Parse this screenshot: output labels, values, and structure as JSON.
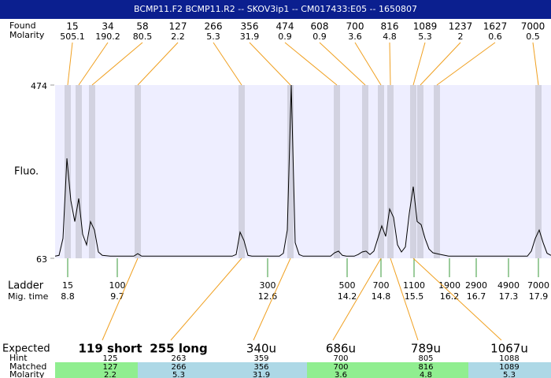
{
  "header": {
    "title": "BCMP11.F2  BCMP11.R2 -- SKOV3ip1 -- CM017433:E05 -- 1650807"
  },
  "row_labels": {
    "size": "Found",
    "molarity": "Molarity",
    "fluo": "Fluo.",
    "ladder": "Ladder",
    "mig_time": "Mig. time",
    "expected": "Expected",
    "hint": "Hint",
    "matched": "Matched",
    "matched_molarity": "Molarity"
  },
  "found": {
    "sizes": [
      15,
      34,
      58,
      127,
      266,
      356,
      474,
      608,
      700,
      816,
      1089,
      1237,
      1627,
      7000
    ],
    "molarity": [
      505.1,
      190.2,
      80.5,
      2.2,
      5.3,
      31.9,
      0.9,
      0.9,
      3.6,
      4.8,
      5.3,
      2,
      0.6,
      0.5
    ]
  },
  "trace": {
    "type": "line",
    "color": "#000000",
    "ylim": [
      63,
      474
    ],
    "yticks": [
      63,
      474
    ],
    "values": [
      68,
      70,
      110,
      300,
      200,
      150,
      205,
      120,
      95,
      150,
      130,
      78,
      70,
      69,
      68,
      68,
      68,
      68,
      68,
      68,
      68,
      74,
      68,
      68,
      68,
      68,
      68,
      68,
      68,
      68,
      68,
      68,
      68,
      68,
      68,
      68,
      68,
      68,
      68,
      68,
      68,
      68,
      68,
      68,
      68,
      68,
      72,
      125,
      105,
      70,
      68,
      68,
      68,
      68,
      68,
      68,
      68,
      68,
      75,
      130,
      474,
      100,
      72,
      68,
      68,
      68,
      68,
      68,
      68,
      68,
      68,
      76,
      80,
      70,
      68,
      68,
      68,
      72,
      78,
      80,
      72,
      80,
      110,
      140,
      115,
      180,
      160,
      95,
      78,
      90,
      170,
      233,
      150,
      143,
      110,
      85,
      76,
      74,
      72,
      70,
      68,
      68,
      68,
      68,
      68,
      68,
      68,
      68,
      68,
      68,
      68,
      68,
      68,
      68,
      68,
      68,
      68,
      68,
      68,
      68,
      68,
      80,
      110,
      130,
      100,
      75,
      70
    ]
  },
  "ladder": {
    "sizes": [
      15,
      100,
      300,
      500,
      700,
      1100,
      1900,
      2900,
      4900,
      7000
    ],
    "mig_times": [
      8.8,
      9.7,
      12.6,
      14.2,
      14.8,
      15.5,
      16.2,
      16.7,
      17.3,
      17.9
    ]
  },
  "expected": {
    "labels": [
      "119 short",
      "255 long",
      "340u",
      "686u",
      "789u",
      "1067u"
    ],
    "hints": [
      125,
      263,
      359,
      700,
      805,
      1088
    ],
    "matched": [
      127,
      266,
      356,
      700,
      816,
      1089
    ],
    "molarity": [
      2.2,
      5.3,
      31.9,
      3.6,
      4.8,
      5.3
    ],
    "colors": [
      "#90ee90",
      "#add8e6",
      "#add8e6",
      "#90ee90",
      "#90ee90",
      "#add8e6"
    ]
  }
}
